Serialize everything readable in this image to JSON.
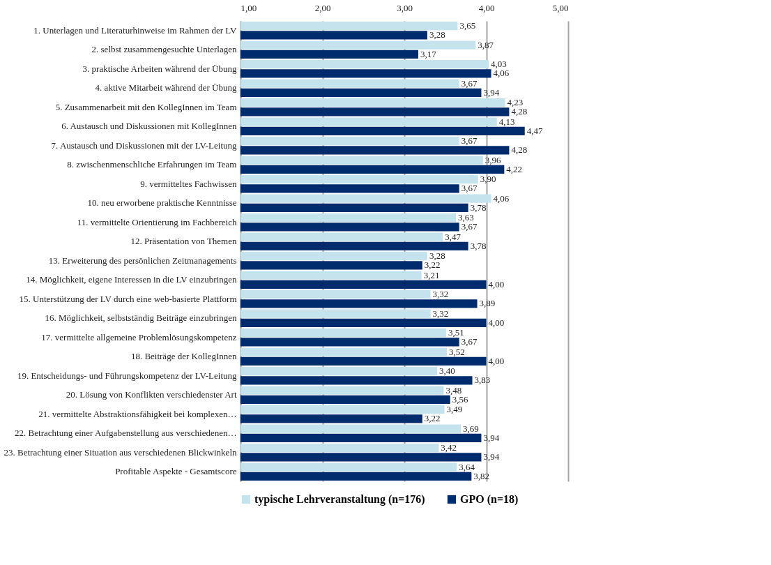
{
  "chart_data": {
    "type": "bar",
    "orientation": "horizontal",
    "categories": [
      "1. Unterlagen und Literaturhinweise im Rahmen der LV",
      "2. selbst zusammengesuchte Unterlagen",
      "3. praktische Arbeiten während der Übung",
      "4. aktive Mitarbeit während der Übung",
      "5. Zusammenarbeit mit den KollegInnen im Team",
      "6. Austausch und Diskussionen mit KollegInnen",
      "7. Austausch und Diskussionen mit der LV-Leitung",
      "8. zwischenmenschliche Erfahrungen im Team",
      "9. vermitteltes Fachwissen",
      "10. neu erworbene praktische Kenntnisse",
      "11. vermittelte Orientierung im Fachbereich",
      "12. Präsentation von Themen",
      "13. Erweiterung des persönlichen Zeitmanagements",
      "14. Möglichkeit, eigene Interessen in die LV einzubringen",
      "15. Unterstützung der LV durch eine web-basierte Plattform",
      "16. Möglichkeit, selbstständig Beiträge einzubringen",
      "17. vermittelte allgemeine Problemlösungskompetenz",
      "18. Beiträge der KollegInnen",
      "19. Entscheidungs- und Führungskompetenz der LV-Leitung",
      "20. Lösung von Konflikten verschiedenster Art",
      "21. vermittelte Abstraktionsfähigkeit bei komplexen…",
      "22. Betrachtung einer Aufgabenstellung aus verschiedenen…",
      "23. Betrachtung einer Situation aus verschiedenen Blickwinkeln",
      "Profitable Aspekte - Gesamtscore"
    ],
    "series": [
      {
        "name": "typische Lehrveranstaltung (n=176)",
        "color": "#c4e3ec",
        "values": [
          3.65,
          3.87,
          4.03,
          3.67,
          4.23,
          4.13,
          3.67,
          3.96,
          3.9,
          4.06,
          3.63,
          3.47,
          3.28,
          3.21,
          3.32,
          3.32,
          3.51,
          3.52,
          3.4,
          3.48,
          3.49,
          3.69,
          3.42,
          3.64
        ],
        "value_labels": [
          "3,65",
          "3,87",
          "4,03",
          "3,67",
          "4,23",
          "4,13",
          "3,67",
          "3,96",
          "3,90",
          "4,06",
          "3,63",
          "3,47",
          "3,28",
          "3,21",
          "3,32",
          "3,32",
          "3,51",
          "3,52",
          "3,40",
          "3,48",
          "3,49",
          "3,69",
          "3,42",
          "3,64"
        ]
      },
      {
        "name": "GPO (n=18)",
        "color": "#002c6e",
        "values": [
          3.28,
          3.17,
          4.06,
          3.94,
          4.28,
          4.47,
          4.28,
          4.22,
          3.67,
          3.78,
          3.67,
          3.78,
          3.22,
          4.0,
          3.89,
          4.0,
          3.67,
          4.0,
          3.83,
          3.56,
          3.22,
          3.94,
          3.94,
          3.82
        ],
        "value_labels": [
          "3,28",
          "3,17",
          "4,06",
          "3,94",
          "4,28",
          "4,47",
          "4,28",
          "4,22",
          "3,67",
          "3,78",
          "3,67",
          "3,78",
          "3,22",
          "4,00",
          "3,89",
          "4,00",
          "3,67",
          "4,00",
          "3,83",
          "3,56",
          "3,22",
          "3,94",
          "3,94",
          "3,82"
        ]
      }
    ],
    "xlim": [
      1,
      5
    ],
    "xticks": [
      {
        "value": 1,
        "label": "1,00"
      },
      {
        "value": 2,
        "label": "2,00"
      },
      {
        "value": 3,
        "label": "3,00"
      },
      {
        "value": 4,
        "label": "4,00"
      },
      {
        "value": 5,
        "label": "5,00"
      }
    ],
    "grid": "x",
    "legend": "bottom"
  }
}
